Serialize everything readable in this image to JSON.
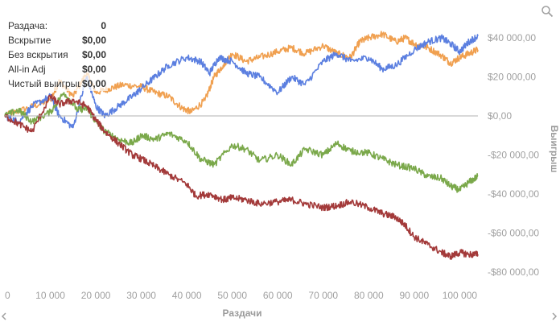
{
  "legend": {
    "rows": [
      {
        "label": "Раздача:",
        "value": "0"
      },
      {
        "label": "Вскрытие",
        "value": "$0,00"
      },
      {
        "label": "Без вскрытия",
        "value": "$0,00"
      },
      {
        "label": "All-in Adj",
        "value": "$0,00"
      },
      {
        "label": "Чистый выигрыш",
        "value": "$0,00"
      }
    ]
  },
  "icons": {
    "zoom": "zoom-icon",
    "scroll_left": "chevron-left-icon",
    "scroll_right": "chevron-right-icon"
  },
  "chart_data": {
    "type": "line",
    "xlabel": "Раздачи",
    "ylabel": "Выигрыш",
    "xlim": [
      0,
      104000
    ],
    "ylim": [
      -85000,
      45000
    ],
    "x_ticks": [
      0,
      10000,
      20000,
      30000,
      40000,
      50000,
      60000,
      70000,
      80000,
      90000,
      100000
    ],
    "x_tick_labels": [
      "0",
      "10 000",
      "20 000",
      "30 000",
      "40 000",
      "50 000",
      "60 000",
      "70 000",
      "80 000",
      "90 000",
      "100 000"
    ],
    "y_ticks": [
      40000,
      20000,
      0,
      -20000,
      -40000,
      -60000,
      -80000
    ],
    "y_tick_labels": [
      "$40 000,00",
      "$20 000,00",
      "$0,00",
      "-$20 000,00",
      "-$40 000,00",
      "-$60 000,00",
      "-$80 000,00"
    ],
    "zero_line": true,
    "grid": false,
    "legend_position": "top-left",
    "series": [
      {
        "color": "#f0a050",
        "x": [
          0,
          5000,
          10000,
          12000,
          15000,
          18000,
          20000,
          23000,
          26000,
          30000,
          33000,
          36000,
          39000,
          41000,
          44000,
          46000,
          48000,
          50000,
          53000,
          56000,
          60000,
          63000,
          66000,
          70000,
          73000,
          76000,
          78000,
          80000,
          83000,
          86000,
          88000,
          90000,
          93000,
          96000,
          98000,
          100000,
          102000,
          104000
        ],
        "y": [
          0,
          4000,
          8000,
          18000,
          10000,
          22000,
          12000,
          14000,
          16000,
          15000,
          12000,
          10000,
          4000,
          2000,
          8000,
          20000,
          26000,
          32000,
          28000,
          30000,
          33000,
          35000,
          32000,
          36000,
          32000,
          30000,
          38000,
          40000,
          42000,
          38000,
          40000,
          37000,
          35000,
          31000,
          27000,
          30000,
          32000,
          34000
        ]
      },
      {
        "color": "#5b7fe0",
        "x": [
          0,
          3000,
          6000,
          10000,
          12000,
          15000,
          18000,
          20000,
          22000,
          25000,
          28000,
          30000,
          33000,
          36000,
          40000,
          43000,
          45000,
          47000,
          50000,
          53000,
          56000,
          60000,
          63000,
          66000,
          70000,
          73000,
          76000,
          80000,
          83000,
          86000,
          90000,
          93000,
          96000,
          98000,
          100000,
          102000,
          104000
        ],
        "y": [
          0,
          -3000,
          5000,
          10000,
          0,
          -6000,
          20000,
          5000,
          0,
          5000,
          10000,
          14000,
          20000,
          26000,
          30000,
          28000,
          22000,
          30000,
          28000,
          22000,
          20000,
          12000,
          20000,
          16000,
          28000,
          32000,
          28000,
          30000,
          24000,
          26000,
          34000,
          38000,
          40000,
          37000,
          33000,
          38000,
          41000
        ]
      },
      {
        "color": "#7aa84a",
        "x": [
          0,
          3000,
          6000,
          10000,
          13000,
          16000,
          18000,
          20000,
          22000,
          25000,
          28000,
          30000,
          33000,
          36000,
          40000,
          43000,
          46000,
          50000,
          53000,
          56000,
          60000,
          63000,
          66000,
          70000,
          73000,
          76000,
          80000,
          83000,
          86000,
          90000,
          93000,
          96000,
          98000,
          100000,
          102000,
          104000
        ],
        "y": [
          0,
          3000,
          -3000,
          2000,
          12000,
          3000,
          4000,
          -3000,
          -8000,
          -12000,
          -14000,
          -10000,
          -12000,
          -9000,
          -13000,
          -22000,
          -25000,
          -15000,
          -17000,
          -23000,
          -20000,
          -25000,
          -17000,
          -20000,
          -14000,
          -18000,
          -19000,
          -22000,
          -25000,
          -27000,
          -31000,
          -32000,
          -36000,
          -38000,
          -34000,
          -31000
        ]
      },
      {
        "color": "#a33a3a",
        "x": [
          0,
          3000,
          6000,
          10000,
          12000,
          15000,
          18000,
          20000,
          22000,
          25000,
          28000,
          30000,
          33000,
          36000,
          40000,
          42000,
          45000,
          48000,
          50000,
          53000,
          56000,
          60000,
          63000,
          66000,
          70000,
          73000,
          76000,
          80000,
          83000,
          86000,
          88000,
          90000,
          93000,
          96000,
          98000,
          100000,
          102000,
          104000
        ],
        "y": [
          0,
          -4000,
          -8000,
          10000,
          6000,
          8000,
          5000,
          -2000,
          -8000,
          -14000,
          -20000,
          -22000,
          -26000,
          -30000,
          -35000,
          -41000,
          -40000,
          -43000,
          -42000,
          -43000,
          -45000,
          -44000,
          -43000,
          -45000,
          -47000,
          -46000,
          -44000,
          -47000,
          -50000,
          -52000,
          -56000,
          -62000,
          -66000,
          -70000,
          -72000,
          -70000,
          -71000,
          -71000
        ]
      }
    ]
  }
}
